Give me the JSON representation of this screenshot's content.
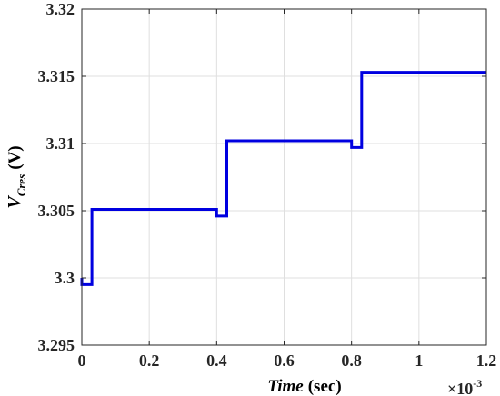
{
  "chart_data": {
    "type": "line",
    "xlabel_italic": "Time",
    "xlabel_unit": "(sec)",
    "ylabel_main": "V",
    "ylabel_sub": "Cres",
    "ylabel_unit": "(V)",
    "x_multiplier_base": "×10",
    "x_multiplier_exp": "-3",
    "xlim": [
      0,
      1.2
    ],
    "ylim": [
      3.295,
      3.32
    ],
    "x_ticks": [
      0,
      0.2,
      0.4,
      0.6,
      0.8,
      1,
      1.2
    ],
    "x_tick_labels": [
      "0",
      "0.2",
      "0.4",
      "0.6",
      "0.8",
      "1",
      "1.2"
    ],
    "y_ticks": [
      3.295,
      3.3,
      3.305,
      3.31,
      3.315,
      3.32
    ],
    "y_tick_labels": [
      "3.295",
      "3.3",
      "3.305",
      "3.31",
      "3.315",
      "3.32"
    ],
    "grid": true,
    "series": [
      {
        "color": "#0000e0",
        "x": [
          0,
          0,
          0.03,
          0.03,
          0.03,
          0.4,
          0.4,
          0.43,
          0.43,
          0.43,
          0.8,
          0.8,
          0.83,
          0.83,
          0.83,
          1.2
        ],
        "y": [
          3.3,
          3.2995,
          3.2995,
          3.3,
          3.3051,
          3.3051,
          3.3046,
          3.3046,
          3.3051,
          3.3102,
          3.3102,
          3.3097,
          3.3097,
          3.3102,
          3.3153,
          3.3153
        ]
      }
    ]
  }
}
